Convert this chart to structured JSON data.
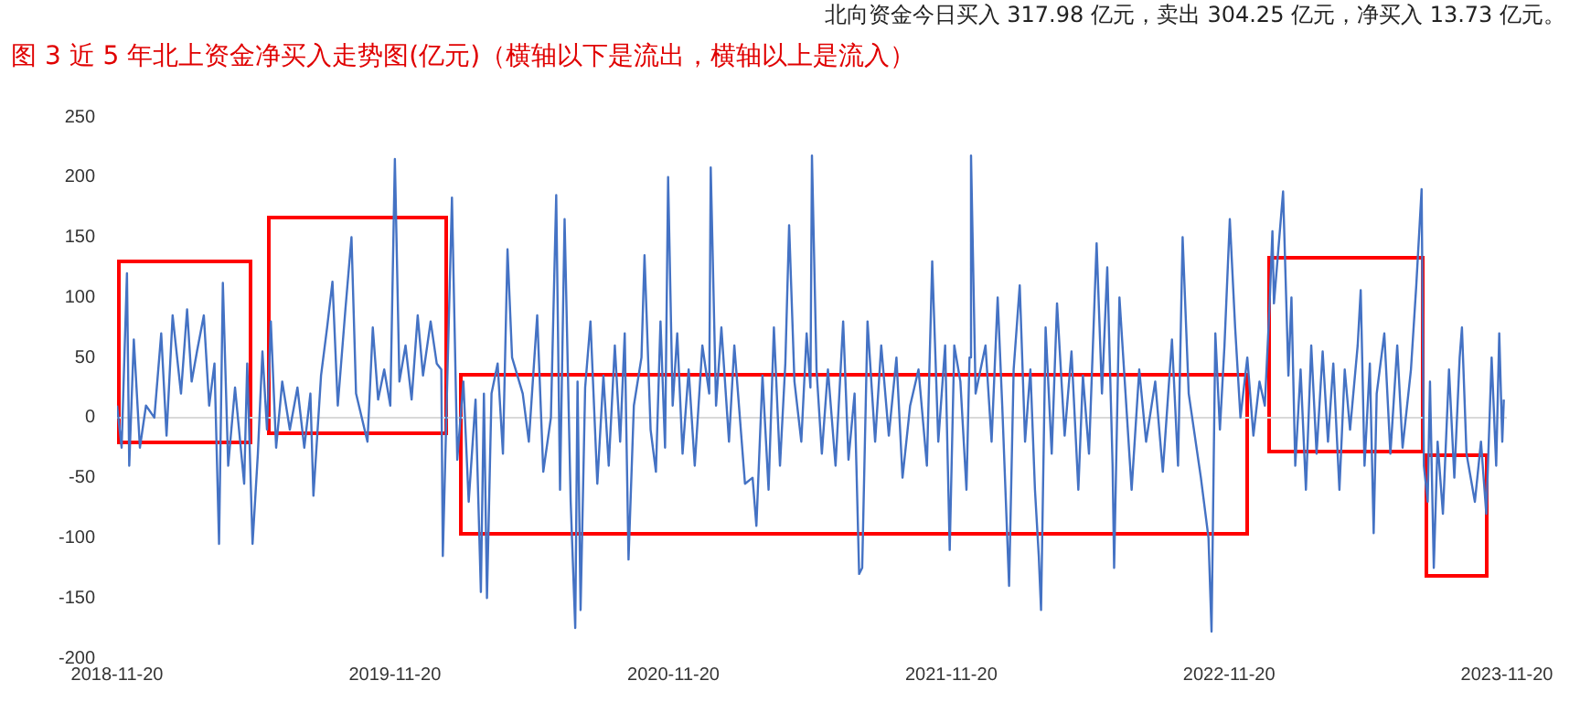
{
  "chart_data": {
    "type": "line",
    "title": "图 3 近 5 年北上资金净买入走势图(亿元)（横轴以下是流出，横轴以上是流入）",
    "annotations": [
      "北向资金今日买入 317.98 亿元，卖出 304.25 亿元，净买入 13.73 亿元。"
    ],
    "x": [
      "2018-11-20",
      "2018-11-26",
      "2018-12-03",
      "2018-12-06",
      "2018-12-12",
      "2018-12-20",
      "2018-12-28",
      "2019-01-08",
      "2019-01-17",
      "2019-01-24",
      "2019-02-01",
      "2019-02-12",
      "2019-02-20",
      "2019-02-26",
      "2019-03-05",
      "2019-03-14",
      "2019-03-21",
      "2019-03-28",
      "2019-04-03",
      "2019-04-08",
      "2019-04-15",
      "2019-04-24",
      "2019-05-06",
      "2019-05-10",
      "2019-05-17",
      "2019-05-24",
      "2019-05-30",
      "2019-06-05",
      "2019-06-10",
      "2019-06-17",
      "2019-06-25",
      "2019-07-05",
      "2019-07-15",
      "2019-07-24",
      "2019-08-01",
      "2019-08-05",
      "2019-08-15",
      "2019-08-23",
      "2019-08-30",
      "2019-09-06",
      "2019-09-16",
      "2019-09-24",
      "2019-09-30",
      "2019-10-15",
      "2019-10-22",
      "2019-10-29",
      "2019-11-06",
      "2019-11-14",
      "2019-11-20",
      "2019-11-26",
      "2019-12-04",
      "2019-12-12",
      "2019-12-20",
      "2019-12-27",
      "2020-01-06",
      "2020-01-14",
      "2020-01-20",
      "2020-01-22",
      "2020-02-03",
      "2020-02-10",
      "2020-02-18",
      "2020-02-25",
      "2020-03-05",
      "2020-03-12",
      "2020-03-16",
      "2020-03-20",
      "2020-03-26",
      "2020-04-03",
      "2020-04-10",
      "2020-04-16",
      "2020-04-22",
      "2020-05-06",
      "2020-05-14",
      "2020-05-25",
      "2020-06-02",
      "2020-06-12",
      "2020-06-19",
      "2020-06-24",
      "2020-06-30",
      "2020-07-08",
      "2020-07-14",
      "2020-07-17",
      "2020-07-21",
      "2020-07-27",
      "2020-08-03",
      "2020-08-12",
      "2020-08-20",
      "2020-08-27",
      "2020-09-04",
      "2020-09-11",
      "2020-09-17",
      "2020-09-22",
      "2020-09-29",
      "2020-10-09",
      "2020-10-13",
      "2020-10-21",
      "2020-10-28",
      "2020-11-03",
      "2020-11-09",
      "2020-11-13",
      "2020-11-19",
      "2020-11-25",
      "2020-12-02",
      "2020-12-10",
      "2020-12-18",
      "2020-12-28",
      "2021-01-06",
      "2021-01-08",
      "2021-01-15",
      "2021-01-22",
      "2021-02-01",
      "2021-02-08",
      "2021-02-22",
      "2021-03-04",
      "2021-03-09",
      "2021-03-17",
      "2021-03-25",
      "2021-04-01",
      "2021-04-09",
      "2021-04-16",
      "2021-04-21",
      "2021-04-28",
      "2021-05-07",
      "2021-05-14",
      "2021-05-19",
      "2021-05-21",
      "2021-05-27",
      "2021-06-03",
      "2021-06-11",
      "2021-06-21",
      "2021-07-01",
      "2021-07-08",
      "2021-07-16",
      "2021-07-22",
      "2021-07-26",
      "2021-08-02",
      "2021-08-12",
      "2021-08-20",
      "2021-08-30",
      "2021-09-09",
      "2021-09-17",
      "2021-09-27",
      "2021-10-08",
      "2021-10-19",
      "2021-10-26",
      "2021-11-03",
      "2021-11-12",
      "2021-11-18",
      "2021-11-24",
      "2021-12-02",
      "2021-12-10",
      "2021-12-14",
      "2021-12-16",
      "2021-12-22",
      "2022-01-04",
      "2022-01-12",
      "2022-01-20",
      "2022-01-26",
      "2022-02-04",
      "2022-02-10",
      "2022-02-18",
      "2022-02-25",
      "2022-03-04",
      "2022-03-10",
      "2022-03-15",
      "2022-03-18",
      "2022-03-24",
      "2022-04-01",
      "2022-04-08",
      "2022-04-18",
      "2022-04-27",
      "2022-05-06",
      "2022-05-12",
      "2022-05-20",
      "2022-05-30",
      "2022-06-06",
      "2022-06-13",
      "2022-06-20",
      "2022-06-22",
      "2022-06-29",
      "2022-07-07",
      "2022-07-15",
      "2022-07-25",
      "2022-08-03",
      "2022-08-15",
      "2022-08-25",
      "2022-09-06",
      "2022-09-14",
      "2022-09-20",
      "2022-09-28",
      "2022-10-14",
      "2022-10-24",
      "2022-10-28",
      "2022-11-02",
      "2022-11-08",
      "2022-11-14",
      "2022-11-21",
      "2022-11-28",
      "2022-12-05",
      "2022-12-14",
      "2022-12-22",
      "2022-12-30",
      "2023-01-06",
      "2023-01-12",
      "2023-01-16",
      "2023-01-18",
      "2023-01-30",
      "2023-02-06",
      "2023-02-10",
      "2023-02-15",
      "2023-02-22",
      "2023-03-01",
      "2023-03-08",
      "2023-03-15",
      "2023-03-23",
      "2023-03-30",
      "2023-04-06",
      "2023-04-14",
      "2023-04-21",
      "2023-04-28",
      "2023-05-08",
      "2023-05-12",
      "2023-05-17",
      "2023-05-24",
      "2023-05-29",
      "2023-06-02",
      "2023-06-12",
      "2023-06-20",
      "2023-06-29",
      "2023-07-06",
      "2023-07-17",
      "2023-07-24",
      "2023-07-31",
      "2023-08-03",
      "2023-08-08",
      "2023-08-11",
      "2023-08-16",
      "2023-08-21",
      "2023-08-28",
      "2023-09-05",
      "2023-09-12",
      "2023-09-19",
      "2023-09-22",
      "2023-09-28",
      "2023-10-09",
      "2023-10-17",
      "2023-10-24",
      "2023-10-31",
      "2023-11-06",
      "2023-11-10",
      "2023-11-14",
      "2023-11-16"
    ],
    "series": [
      {
        "color": "#4472c4",
        "values": [
          10,
          -25,
          120,
          -40,
          65,
          -25,
          10,
          0,
          70,
          -15,
          85,
          20,
          90,
          30,
          55,
          85,
          10,
          45,
          -105,
          112,
          -40,
          25,
          -55,
          45,
          -105,
          -30,
          55,
          -10,
          80,
          -25,
          30,
          -10,
          25,
          -25,
          20,
          -65,
          35,
          75,
          113,
          10,
          90,
          150,
          20,
          -20,
          75,
          15,
          40,
          10,
          215,
          30,
          60,
          15,
          85,
          35,
          80,
          45,
          40,
          -115,
          183,
          -35,
          30,
          -70,
          15,
          -145,
          20,
          -150,
          20,
          45,
          -30,
          140,
          50,
          20,
          -20,
          85,
          -45,
          0,
          185,
          -60,
          165,
          -70,
          -175,
          30,
          -160,
          25,
          80,
          -55,
          35,
          -40,
          60,
          -20,
          70,
          -118,
          10,
          50,
          135,
          -10,
          -45,
          80,
          -25,
          200,
          10,
          70,
          -30,
          40,
          -40,
          60,
          20,
          208,
          10,
          75,
          -20,
          60,
          -55,
          -50,
          -90,
          35,
          -60,
          75,
          -40,
          45,
          160,
          30,
          -20,
          70,
          25,
          218,
          40,
          -30,
          40,
          -40,
          80,
          -35,
          20,
          -130,
          -125,
          80,
          -20,
          60,
          -15,
          50,
          -50,
          10,
          40,
          -40,
          130,
          -20,
          60,
          -110,
          60,
          30,
          -60,
          50,
          218,
          20,
          60,
          -20,
          100,
          10,
          -140,
          40,
          110,
          -20,
          40,
          -60,
          -115,
          -160,
          75,
          -30,
          95,
          -15,
          55,
          -60,
          35,
          -30,
          145,
          20,
          125,
          -40,
          -125,
          100,
          20,
          -60,
          40,
          -20,
          30,
          -45,
          65,
          -40,
          150,
          20,
          -50,
          -100,
          -178,
          70,
          -10,
          60,
          165,
          75,
          0,
          50,
          -15,
          30,
          10,
          90,
          155,
          95,
          188,
          35,
          100,
          -40,
          40,
          -60,
          60,
          -30,
          55,
          -20,
          45,
          -60,
          40,
          -10,
          60,
          106,
          -40,
          45,
          -96,
          20,
          70,
          -30,
          60,
          -25,
          40,
          110,
          190,
          -40,
          -70,
          30,
          -125,
          -20,
          -80,
          40,
          -50,
          50,
          75,
          -30,
          -70,
          -20,
          -80,
          50,
          -40,
          70,
          -20,
          15
        ]
      }
    ],
    "xlim": [
      "2018-11-20",
      "2023-11-20"
    ],
    "xticks": [
      "2018-11-20",
      "2019-11-20",
      "2020-11-20",
      "2021-11-20",
      "2022-11-20",
      "2023-11-20"
    ],
    "ylim": [
      -200,
      250
    ],
    "yticks": [
      -200,
      -150,
      -100,
      -50,
      0,
      50,
      100,
      150,
      200,
      250
    ],
    "ref_lines": [
      {
        "axis": "y",
        "value": 0,
        "color": "#d9d9d9"
      }
    ],
    "marker": "none",
    "legend": false
  }
}
